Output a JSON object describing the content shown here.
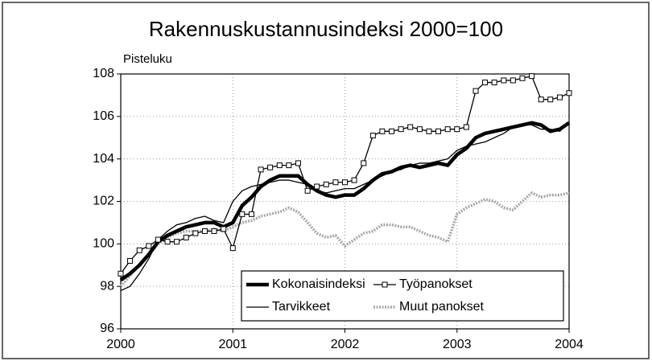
{
  "chart_data": {
    "type": "line",
    "title": "Rakennuskustannusindeksi 2000=100",
    "y_label": "Pisteluku",
    "x": [
      2000,
      2000.083,
      2000.167,
      2000.25,
      2000.333,
      2000.417,
      2000.5,
      2000.583,
      2000.667,
      2000.75,
      2000.833,
      2000.917,
      2001,
      2001.083,
      2001.167,
      2001.25,
      2001.333,
      2001.417,
      2001.5,
      2001.583,
      2001.667,
      2001.75,
      2001.833,
      2001.917,
      2002,
      2002.083,
      2002.167,
      2002.25,
      2002.333,
      2002.417,
      2002.5,
      2002.583,
      2002.667,
      2002.75,
      2002.833,
      2002.917,
      2003,
      2003.083,
      2003.167,
      2003.25,
      2003.333,
      2003.417,
      2003.5,
      2003.583,
      2003.667,
      2003.75,
      2003.833,
      2003.917,
      2004
    ],
    "series": [
      {
        "name": "Kokonaisindeksi",
        "color": "#000000",
        "style": "thick",
        "values": [
          98.3,
          98.6,
          99.0,
          99.5,
          100.1,
          100.4,
          100.6,
          100.8,
          100.9,
          101.0,
          101.0,
          100.8,
          101.0,
          101.8,
          102.2,
          102.7,
          103.0,
          103.2,
          103.2,
          103.2,
          102.8,
          102.5,
          102.3,
          102.2,
          102.3,
          102.3,
          102.6,
          103.0,
          103.3,
          103.4,
          103.6,
          103.7,
          103.6,
          103.7,
          103.8,
          103.7,
          104.2,
          104.5,
          105.0,
          105.2,
          105.3,
          105.4,
          105.5,
          105.6,
          105.7,
          105.6,
          105.3,
          105.4,
          105.7
        ]
      },
      {
        "name": "Työpanokset",
        "color": "#000000",
        "style": "square-markers",
        "values": [
          98.6,
          99.2,
          99.7,
          99.9,
          100.2,
          100.1,
          100.1,
          100.3,
          100.5,
          100.6,
          100.6,
          100.7,
          99.8,
          101.4,
          101.4,
          103.5,
          103.6,
          103.7,
          103.7,
          103.8,
          102.5,
          102.7,
          102.8,
          102.9,
          102.9,
          103.0,
          103.8,
          105.1,
          105.3,
          105.3,
          105.4,
          105.5,
          105.4,
          105.3,
          105.3,
          105.4,
          105.4,
          105.5,
          107.2,
          107.6,
          107.6,
          107.7,
          107.7,
          107.8,
          107.9,
          106.8,
          106.8,
          106.9,
          107.1
        ]
      },
      {
        "name": "Tarvikkeet",
        "color": "#000000",
        "style": "thin",
        "values": [
          97.8,
          98.0,
          98.6,
          99.3,
          100.2,
          100.6,
          100.9,
          101.0,
          101.2,
          101.3,
          101.1,
          101.0,
          102.0,
          102.5,
          102.7,
          102.8,
          102.9,
          103.0,
          103.0,
          102.9,
          102.8,
          102.5,
          102.4,
          102.5,
          102.6,
          102.6,
          102.8,
          103.0,
          103.2,
          103.4,
          103.5,
          103.7,
          103.8,
          103.8,
          103.9,
          104.0,
          104.4,
          104.6,
          104.7,
          104.8,
          105.0,
          105.2,
          105.5,
          105.6,
          105.6,
          105.4,
          105.4,
          105.3,
          105.7
        ]
      },
      {
        "name": "Muut panokset",
        "color": "#a8a8a8",
        "style": "dotted",
        "values": [
          98.0,
          98.5,
          99.0,
          99.5,
          100.0,
          100.3,
          100.5,
          100.6,
          100.6,
          100.6,
          100.7,
          100.6,
          100.8,
          101.0,
          101.1,
          101.3,
          101.4,
          101.5,
          101.7,
          101.5,
          101.0,
          100.5,
          100.3,
          100.4,
          99.9,
          100.2,
          100.5,
          100.6,
          100.9,
          100.9,
          100.8,
          100.8,
          100.6,
          100.4,
          100.3,
          100.1,
          101.4,
          101.7,
          101.9,
          102.1,
          102.0,
          101.7,
          101.6,
          102.0,
          102.4,
          102.2,
          102.3,
          102.3,
          102.4
        ]
      }
    ],
    "xlim": [
      2000,
      2004
    ],
    "xticks": [
      2000,
      2001,
      2002,
      2003,
      2004
    ],
    "ylim": [
      96,
      108
    ],
    "yticks": [
      96,
      98,
      100,
      102,
      104,
      106,
      108
    ],
    "grid": true,
    "legend": "lower right"
  }
}
